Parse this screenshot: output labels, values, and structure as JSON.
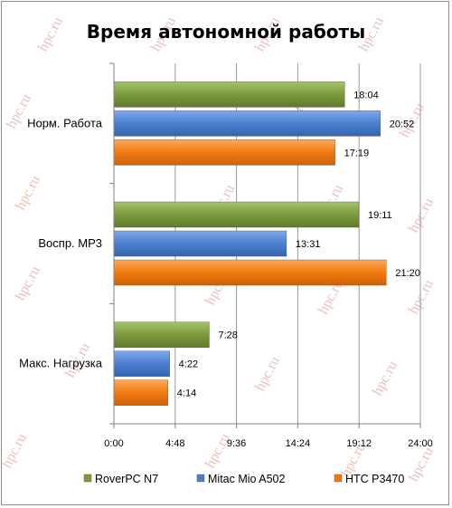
{
  "chart_data": {
    "type": "bar",
    "orientation": "horizontal",
    "title": "Время автономной работы",
    "categories": [
      "Норм. Работа",
      "Воспр. MP3",
      "Макс. Нагрузка"
    ],
    "series": [
      {
        "name": "RoverPC N7",
        "color": "#7b9a3d",
        "values": [
          18.0667,
          19.1833,
          7.4667
        ],
        "labels": [
          "18:04",
          "19:11",
          "7:28"
        ]
      },
      {
        "name": "Mitac Mio A502",
        "color": "#4a7fcf",
        "values": [
          20.8667,
          13.5167,
          4.3667
        ],
        "labels": [
          "20:52",
          "13:31",
          "4:22"
        ]
      },
      {
        "name": "HTC P3470",
        "color": "#f07a10",
        "values": [
          17.3167,
          21.3333,
          4.2333
        ],
        "labels": [
          "17:19",
          "21:20",
          "4:14"
        ]
      }
    ],
    "xlim": [
      0,
      24
    ],
    "xticks": [
      0,
      4.8,
      9.6,
      14.4,
      19.2,
      24
    ],
    "xtick_labels": [
      "0:00",
      "4:48",
      "9:36",
      "14:24",
      "19:12",
      "24:00"
    ],
    "grid": true,
    "legend": "bottom"
  },
  "watermark": "hpc.ru"
}
